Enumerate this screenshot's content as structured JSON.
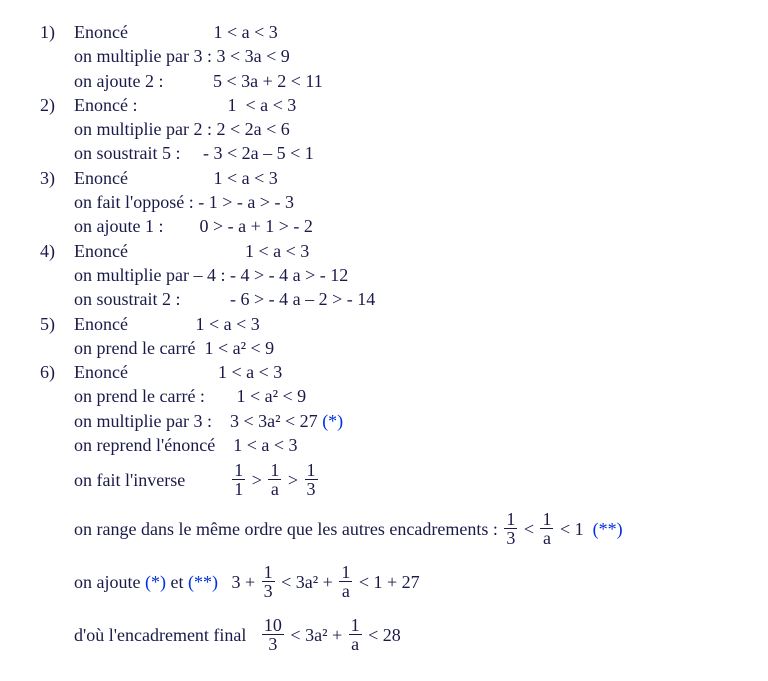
{
  "color_text": "#1a1a4a",
  "color_blue": "#0030e0",
  "font_family": "Times New Roman",
  "font_size_pt": 14,
  "ex1": {
    "num": "1)",
    "l1_a": "Enoncé",
    "l1_b": "1 < a < 3",
    "l2_a": "on multiplie par 3 :",
    "l2_b": "3 < 3a < 9",
    "l3_a": "on ajoute 2 :",
    "l3_b": "5 < 3a + 2 < 11"
  },
  "ex2": {
    "num": "2)",
    "l1_a": "Enoncé :",
    "l1_b": "1  < a < 3",
    "l2_a": "on multiplie par 2 :",
    "l2_b": "2 < 2a < 6",
    "l3_a": "on soustrait 5 :",
    "l3_b": "- 3 < 2a – 5 < 1"
  },
  "ex3": {
    "num": "3)",
    "l1_a": "Enoncé",
    "l1_b": "1 < a < 3",
    "l2_a": "on fait l'opposé :",
    "l2_b": "- 1 > - a > - 3",
    "l3_a": "on ajoute 1 :",
    "l3_b": "0 > - a + 1 > - 2"
  },
  "ex4": {
    "num": "4)",
    "l1_a": "Enoncé",
    "l1_b": "1 < a < 3",
    "l2_a": "on multiplie par – 4 :",
    "l2_b": "- 4 > - 4 a > - 12",
    "l3_a": "on soustrait 2 :",
    "l3_b": "- 6 > - 4 a – 2 > - 14"
  },
  "ex5": {
    "num": "5)",
    "l1_a": "Enoncé",
    "l1_b": "1 < a < 3",
    "l2_a": "on prend le carré",
    "l2_b": "1 < a² < 9"
  },
  "ex6": {
    "num": "6)",
    "l1_a": "Enoncé",
    "l1_b": "1 < a < 3",
    "l2_a": "on prend le carré :",
    "l2_b": "1 < a² < 9",
    "l3_a": "on multiplie par 3 :",
    "l3_b": "3 < 3a² < 27",
    "l3_star": " (*)",
    "l4_a": "on reprend l'énoncé",
    "l4_b": "1 < a < 3",
    "l5_a": "on fait l'inverse",
    "l5_f1t": "1",
    "l5_f1b": "1",
    "l5_g1": " > ",
    "l5_f2t": "1",
    "l5_f2b": "a",
    "l5_g2": " > ",
    "l5_f3t": "1",
    "l5_f3b": "3",
    "l6_a": "on range dans le même ordre que les autres encadrements : ",
    "l6_f1t": "1",
    "l6_f1b": "3",
    "l6_g1": " < ",
    "l6_f2t": "1",
    "l6_f2b": "a",
    "l6_g2": " < 1",
    "l6_star": "  (**)",
    "l7_a": "on ajoute ",
    "l7_s1": "(*)",
    "l7_mid": " et ",
    "l7_s2": "(**)",
    "l7_gap": "   3 + ",
    "l7_f1t": "1",
    "l7_f1b": "3",
    "l7_g1": " < 3a² + ",
    "l7_f2t": "1",
    "l7_f2b": "a",
    "l7_g2": " < 1 + 27",
    "l8_a": "d'où l'encadrement final   ",
    "l8_f1t": "10",
    "l8_f1b": "3",
    "l8_g1": " < 3a² + ",
    "l8_f2t": "1",
    "l8_f2b": "a",
    "l8_g2": " < 28"
  }
}
